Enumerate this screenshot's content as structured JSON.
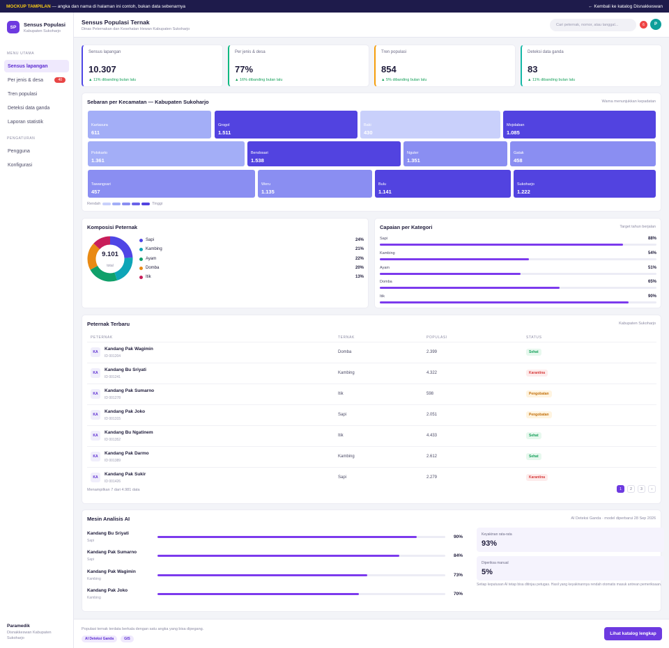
{
  "banner": {
    "tag": "MOCKUP TAMPILAN",
    "text": " — angka dan nama di halaman ini contoh, bukan data sebenarnya",
    "back_link": "← Kembali ke katalog Disnakkeswan"
  },
  "brand": {
    "logo": "SP",
    "title": "Sensus Populasi",
    "subtitle": "Kabupaten Sukoharjo"
  },
  "sidebar": {
    "section_main": "MENU UTAMA",
    "items": [
      {
        "label": "Sensus lapangan",
        "active": true
      },
      {
        "label": "Per jenis & desa",
        "badge": "40"
      },
      {
        "label": "Tren populasi"
      },
      {
        "label": "Deteksi data ganda"
      },
      {
        "label": "Laporan statistik"
      }
    ],
    "section_settings": "PENGATURAN",
    "settings_items": [
      {
        "label": "Pengguna"
      },
      {
        "label": "Konfigurasi"
      }
    ],
    "footer": {
      "name": "Paramedik",
      "org": "Disnakkeswan Kabupaten Sukoharjo"
    }
  },
  "header": {
    "title": "Sensus Populasi Ternak",
    "subtitle": "Dinas Peternakan dan Kesehatan Hewan Kabupaten Sukoharjo",
    "search_placeholder": "Cari peternak, nomor, atau tanggal...",
    "notif_count": "6",
    "avatar": "P"
  },
  "kpis": [
    {
      "label": "Sensus lapangan",
      "value": "10.307",
      "trend": "▲ 11% dibanding bulan lalu",
      "color": "#4f46e5"
    },
    {
      "label": "Per jenis & desa",
      "value": "77%",
      "trend": "▲ 16% dibanding bulan lalu",
      "color": "#10b981"
    },
    {
      "label": "Tren populasi",
      "value": "854",
      "trend": "▲ 5% dibanding bulan lalu",
      "color": "#f59e0b"
    },
    {
      "label": "Deteksi data ganda",
      "value": "83",
      "trend": "▲ 11% dibanding bulan lalu",
      "color": "#14b8a6"
    }
  ],
  "treemap": {
    "title": "Sebaran per Kecamatan — Kabupaten Sukoharjo",
    "note": "Warna menunjukkan kepadatan",
    "rows": [
      [
        {
          "name": "Kartasura",
          "value": "611",
          "color": "#a3aef7"
        },
        {
          "name": "Grogol",
          "value": "1.511",
          "color": "#5243e0"
        },
        {
          "name": "Baki",
          "value": "430",
          "color": "#c9d0fb"
        },
        {
          "name": "Mojolaban",
          "value": "1.085",
          "color": "#5243e0"
        }
      ],
      [
        {
          "name": "Polokarto",
          "value": "1.361",
          "color": "#a3aef7"
        },
        {
          "name": "Bendosari",
          "value": "1.538",
          "color": "#5243e0"
        },
        {
          "name": "Nguter",
          "value": "1.351",
          "color": "#8a8ef2"
        },
        {
          "name": "Gatak",
          "value": "458",
          "color": "#8a8ef2"
        }
      ],
      [
        {
          "name": "Tawangsari",
          "value": "457",
          "color": "#8a8ef2"
        },
        {
          "name": "Weru",
          "value": "1.135",
          "color": "#8a8ef2"
        },
        {
          "name": "Bulu",
          "value": "1.141",
          "color": "#5243e0"
        },
        {
          "name": "Sukoharjo",
          "value": "1.222",
          "color": "#5243e0"
        }
      ]
    ],
    "legend_low": "Rendah",
    "legend_high": "Tinggi",
    "legend_colors": [
      "#c9d0fb",
      "#a3aef7",
      "#8a8ef2",
      "#6a62e8",
      "#5243e0"
    ]
  },
  "composition": {
    "title": "Komposisi Peternak",
    "total": "9.101",
    "total_label": "total",
    "items": [
      {
        "name": "Sapi",
        "pct": "24%",
        "value": 24,
        "color": "#4f46e5"
      },
      {
        "name": "Kambing",
        "pct": "21%",
        "value": 21,
        "color": "#0ea5b7"
      },
      {
        "name": "Ayam",
        "pct": "22%",
        "value": 22,
        "color": "#10a06a"
      },
      {
        "name": "Domba",
        "pct": "20%",
        "value": 20,
        "color": "#e98a14"
      },
      {
        "name": "Itik",
        "pct": "13%",
        "value": 13,
        "color": "#c81e5a"
      }
    ]
  },
  "achievement": {
    "title": "Capaian per Kategori",
    "note": "Target tahun berjalan",
    "items": [
      {
        "name": "Sapi",
        "pct": "88%",
        "value": 88
      },
      {
        "name": "Kambing",
        "pct": "54%",
        "value": 54
      },
      {
        "name": "Ayam",
        "pct": "51%",
        "value": 51
      },
      {
        "name": "Domba",
        "pct": "65%",
        "value": 65
      },
      {
        "name": "Itik",
        "pct": "90%",
        "value": 90
      }
    ]
  },
  "latest": {
    "title": "Peternak Terbaru",
    "note": "Kabupaten Sukoharjo",
    "columns": [
      "PETERNAK",
      "TERNAK",
      "POPULASI",
      "STATUS"
    ],
    "rows": [
      {
        "initials": "KA",
        "name": "Kandang Pak Wagimin",
        "id": "ID 001204",
        "ternak": "Domba",
        "populasi": "2.399",
        "status": "Sehat",
        "tone": "green"
      },
      {
        "initials": "KA",
        "name": "Kandang Bu Sriyati",
        "id": "ID 001241",
        "ternak": "Kambing",
        "populasi": "4.322",
        "status": "Karantina",
        "tone": "red"
      },
      {
        "initials": "KA",
        "name": "Kandang Pak Sumarno",
        "id": "ID 001278",
        "ternak": "Itik",
        "populasi": "598",
        "status": "Pengobatan",
        "tone": "orange"
      },
      {
        "initials": "KA",
        "name": "Kandang Pak Joko",
        "id": "ID 001315",
        "ternak": "Sapi",
        "populasi": "2.051",
        "status": "Pengobatan",
        "tone": "orange"
      },
      {
        "initials": "KA",
        "name": "Kandang Bu Ngatinem",
        "id": "ID 001352",
        "ternak": "Itik",
        "populasi": "4.433",
        "status": "Sehat",
        "tone": "green"
      },
      {
        "initials": "KA",
        "name": "Kandang Pak Darmo",
        "id": "ID 001389",
        "ternak": "Kambing",
        "populasi": "2.612",
        "status": "Sehat",
        "tone": "green"
      },
      {
        "initials": "KA",
        "name": "Kandang Pak Sukir",
        "id": "ID 001426",
        "ternak": "Sapi",
        "populasi": "2.279",
        "status": "Karantina",
        "tone": "red"
      }
    ],
    "footer_text": "Menampilkan 7 dari 4.981 data",
    "pages": [
      "1",
      "2",
      "3",
      "›"
    ]
  },
  "ai": {
    "title": "Mesin Analisis AI",
    "note": "AI Deteksi Ganda · model diperbarui 28 Sep 2026",
    "rows": [
      {
        "name": "Kandang Bu Sriyati",
        "type": "Sapi",
        "pct": "90%",
        "value": 90
      },
      {
        "name": "Kandang Pak Sumarno",
        "type": "Sapi",
        "pct": "84%",
        "value": 84
      },
      {
        "name": "Kandang Pak Wagimin",
        "type": "Kambing",
        "pct": "73%",
        "value": 73
      },
      {
        "name": "Kandang Pak Joko",
        "type": "Kambing",
        "pct": "70%",
        "value": 70
      }
    ],
    "stat1_label": "Keyakinan rata-rata",
    "stat1_value": "93%",
    "stat2_label": "Diperiksa manual",
    "stat2_value": "5%",
    "footnote": "Setiap keputusan AI tetap bisa ditinjau petugas. Hasil yang keyakinannya rendah otomatis masuk antrean pemeriksaan."
  },
  "footer": {
    "text": "Populasi ternak terdata berkala dengan satu angka yang bisa dipegang.",
    "chips": [
      "AI Deteksi Ganda",
      "GIS"
    ],
    "cta": "Lihat katalog lengkap"
  }
}
